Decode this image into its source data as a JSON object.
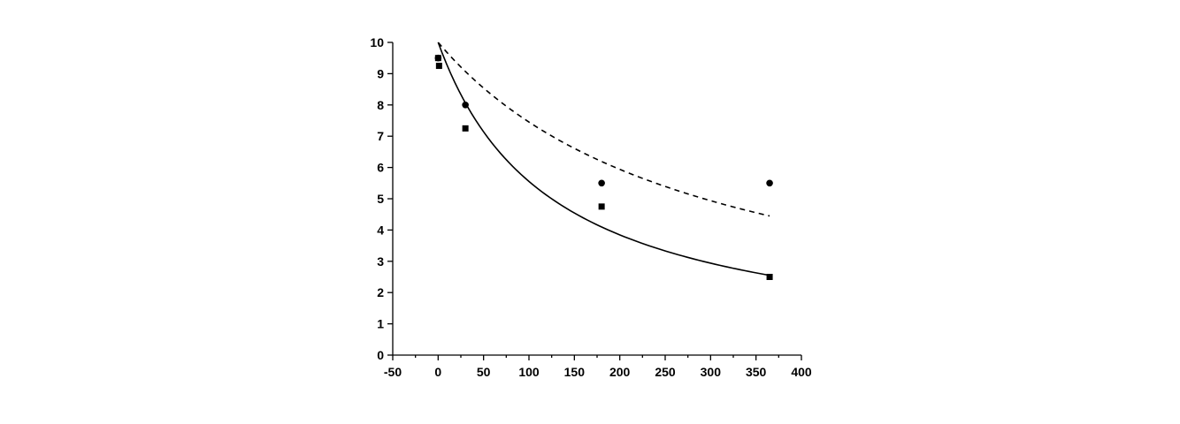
{
  "chart_data": {
    "type": "scatter",
    "title": "",
    "xlabel": "",
    "ylabel": "",
    "xlim": [
      -50,
      400
    ],
    "ylim": [
      0,
      10
    ],
    "x_ticks": [
      -50,
      0,
      50,
      100,
      150,
      200,
      250,
      300,
      350,
      400
    ],
    "x_minor_ticks": [
      -25,
      25,
      75,
      125,
      175,
      225,
      275,
      325,
      375
    ],
    "y_ticks": [
      0,
      1,
      2,
      3,
      4,
      5,
      6,
      7,
      8,
      9,
      10
    ],
    "x_tick_labels": [
      "-50",
      "0",
      "50",
      "100",
      "150",
      "200",
      "250",
      "300",
      "350",
      "400"
    ],
    "y_tick_labels": [
      "0",
      "1",
      "2",
      "3",
      "4",
      "5",
      "6",
      "7",
      "8",
      "9",
      "10"
    ],
    "grid": false,
    "series": [
      {
        "marker": "square",
        "points": [
          {
            "x": 0,
            "y": 9.5
          },
          {
            "x": 1,
            "y": 9.25
          },
          {
            "x": 30,
            "y": 7.25
          },
          {
            "x": 180,
            "y": 4.75
          },
          {
            "x": 365,
            "y": 2.5
          }
        ],
        "fit": {
          "style": "solid",
          "x_range": [
            0,
            365
          ],
          "points": [
            {
              "x": 0,
              "y": 10
            },
            {
              "x": 30,
              "y": 7.55
            },
            {
              "x": 100,
              "y": 5.4
            },
            {
              "x": 180,
              "y": 4.1
            },
            {
              "x": 365,
              "y": 2.55
            }
          ]
        }
      },
      {
        "marker": "circle",
        "points": [
          {
            "x": 0,
            "y": 9.5
          },
          {
            "x": 30,
            "y": 8.0
          },
          {
            "x": 180,
            "y": 5.5
          },
          {
            "x": 365,
            "y": 5.5
          }
        ],
        "fit": {
          "style": "dashed",
          "x_range": [
            0,
            365
          ],
          "points": [
            {
              "x": 0,
              "y": 10
            },
            {
              "x": 30,
              "y": 8.85
            },
            {
              "x": 180,
              "y": 6.15
            },
            {
              "x": 365,
              "y": 4.45
            }
          ]
        }
      }
    ]
  }
}
